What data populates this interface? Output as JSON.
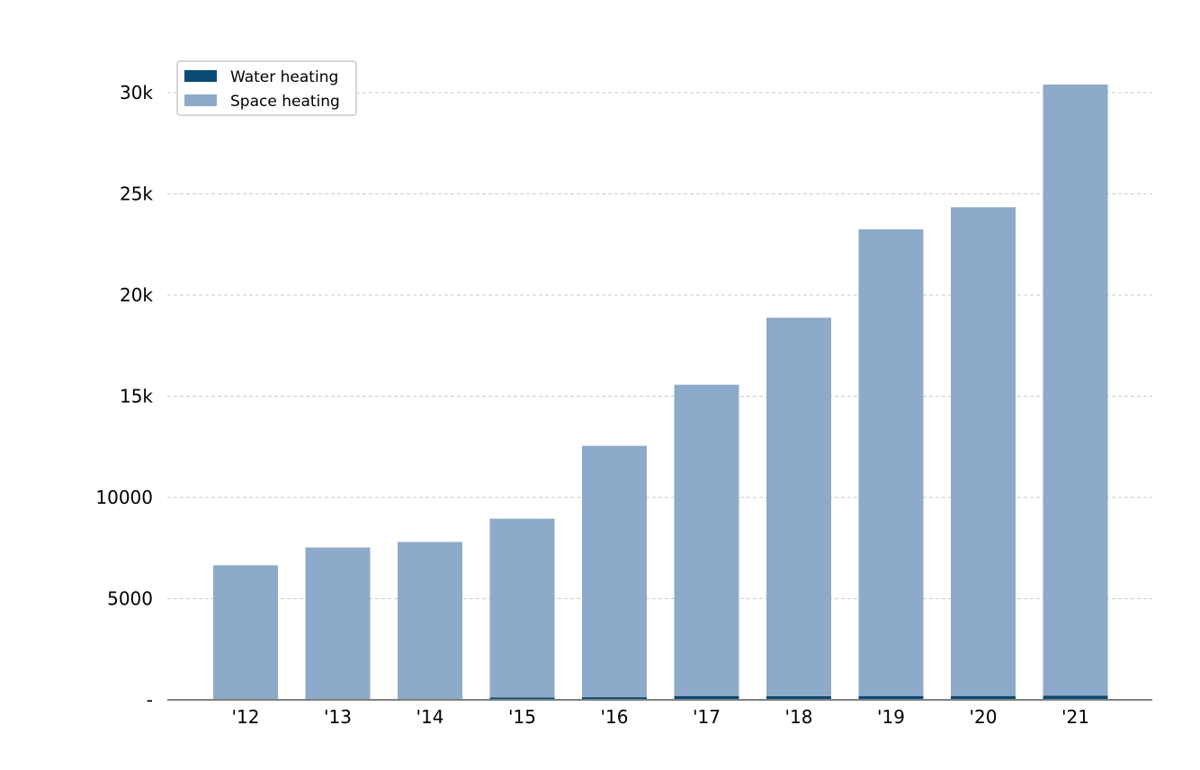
{
  "chart_data": {
    "type": "bar",
    "stacked": true,
    "categories": [
      "'12",
      "'13",
      "'14",
      "'15",
      "'16",
      "'17",
      "'18",
      "'19",
      "'20",
      "'21"
    ],
    "series": [
      {
        "name": "Water heating",
        "color": "#0b4a72",
        "values": [
          0,
          0,
          0,
          120,
          130,
          190,
          180,
          190,
          190,
          200
        ]
      },
      {
        "name": "Space heating",
        "color": "#8eaacb",
        "values": [
          6650,
          7530,
          7800,
          8830,
          12420,
          15380,
          18700,
          23060,
          24150,
          30200
        ]
      }
    ],
    "title": "",
    "xlabel": "",
    "ylabel": "",
    "ylim": [
      0,
      32000
    ],
    "yticks": [
      {
        "value": 0,
        "label": "-"
      },
      {
        "value": 5000,
        "label": "5000"
      },
      {
        "value": 10000,
        "label": "10000"
      },
      {
        "value": 15000,
        "label": "15k"
      },
      {
        "value": 20000,
        "label": "20k"
      },
      {
        "value": 25000,
        "label": "25k"
      },
      {
        "value": 30000,
        "label": "30k"
      }
    ],
    "grid": "horizontal-dashed",
    "legend_position": "top-left"
  }
}
